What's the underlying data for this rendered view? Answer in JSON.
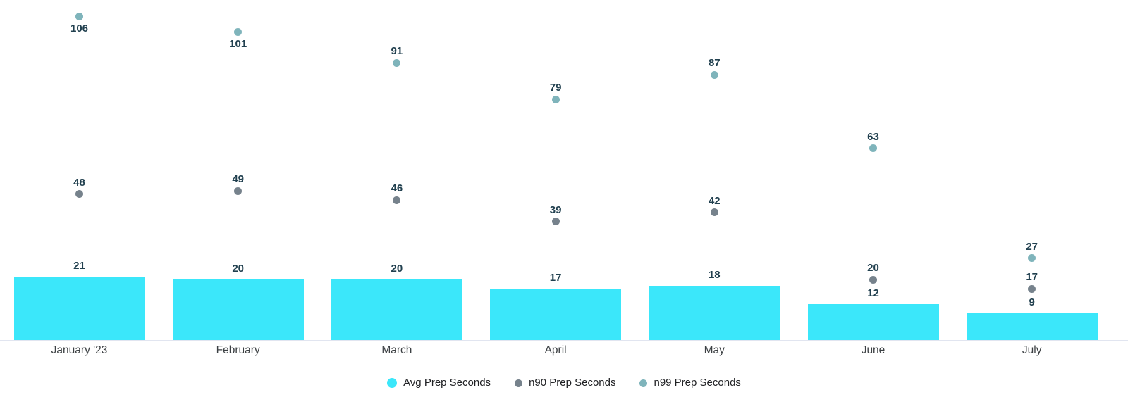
{
  "chart_data": {
    "type": "bar",
    "title": "",
    "xlabel": "",
    "ylabel": "",
    "categories": [
      "January '23",
      "February",
      "March",
      "April",
      "May",
      "June",
      "July"
    ],
    "series": [
      {
        "name": "Avg Prep Seconds",
        "mark": "bar",
        "color": "#3BE7FA",
        "values": [
          21,
          20,
          20,
          17,
          18,
          12,
          9
        ]
      },
      {
        "name": "n90 Prep Seconds",
        "mark": "point",
        "color": "#76828C",
        "values": [
          48,
          49,
          46,
          39,
          42,
          20,
          17
        ]
      },
      {
        "name": "n99 Prep Seconds",
        "mark": "point",
        "color": "#7FB4BB",
        "values": [
          106,
          101,
          91,
          79,
          87,
          63,
          27
        ]
      }
    ],
    "ylim": [
      0,
      111
    ],
    "grid": false,
    "value_labels_shown": true,
    "legend_position": "bottom",
    "colors": {
      "value_label": "#21404F",
      "axis_label": "#3C4043",
      "legend_text": "#202124",
      "axis_line": "#E1E5F0",
      "background": "#FFFFFF"
    }
  }
}
